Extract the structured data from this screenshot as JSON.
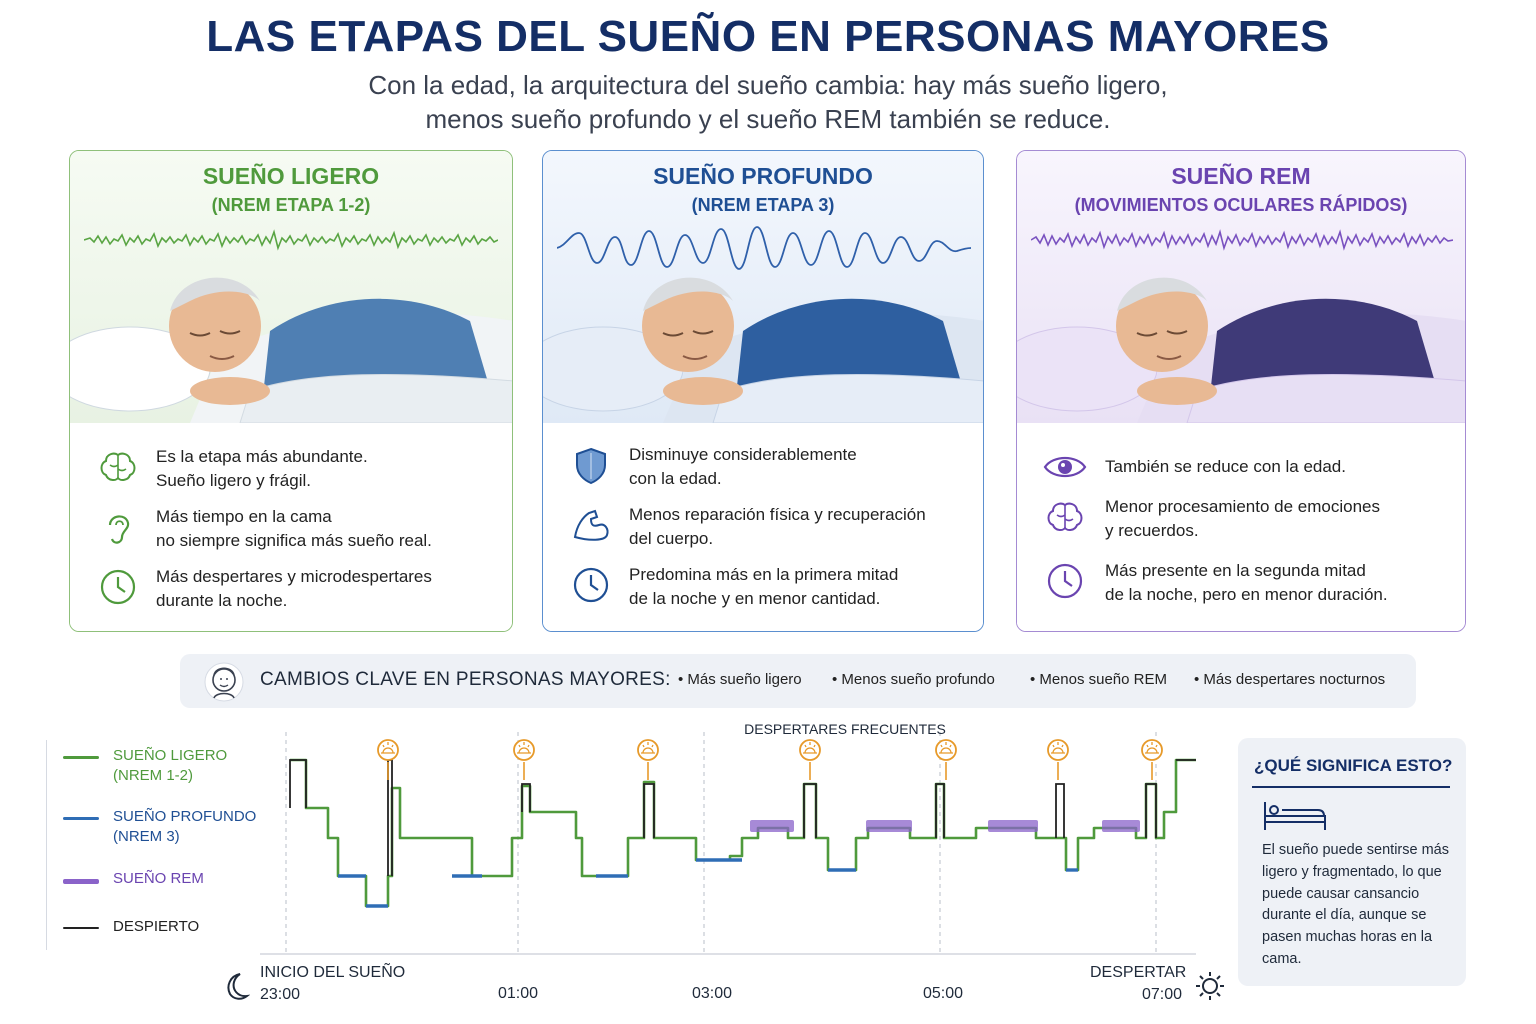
{
  "header": {
    "title": "LAS ETAPAS DEL SUEÑO EN PERSONAS MAYORES",
    "subtitle_line1": "Con la edad, la arquitectura del sueño cambia: hay más sueño ligero,",
    "subtitle_line2": "menos sueño profundo y el sueño REM también se reduce."
  },
  "cards": [
    {
      "title": "SUEÑO LIGERO",
      "subtitle": "(NREM ETAPA 1-2)",
      "color": "#4f9a3c",
      "bullets": [
        {
          "icon": "brain-icon",
          "line1": "Es la etapa más abundante.",
          "line2": "Sueño ligero y frágil."
        },
        {
          "icon": "ear-icon",
          "line1": "Más tiempo en la cama",
          "line2": "no siempre significa más sueño real."
        },
        {
          "icon": "clock-icon",
          "line1": "Más despertares y microdespertares",
          "line2": "durante la noche."
        }
      ]
    },
    {
      "title": "SUEÑO PROFUNDO",
      "subtitle": "(NREM ETAPA 3)",
      "color": "#1f4f94",
      "bullets": [
        {
          "icon": "shield-icon",
          "line1": "Disminuye considerablemente",
          "line2": "con la edad."
        },
        {
          "icon": "muscle-icon",
          "line1": "Menos reparación física y recuperación",
          "line2": "del cuerpo."
        },
        {
          "icon": "clock-icon",
          "line1": "Predomina más en la primera mitad",
          "line2": "de la noche y en menor cantidad."
        }
      ]
    },
    {
      "title": "SUEÑO REM",
      "subtitle": "(MOVIMIENTOS OCULARES RÁPIDOS)",
      "color": "#6a44b0",
      "bullets": [
        {
          "icon": "eye-icon",
          "line1": "También se reduce con la edad.",
          "line2": ""
        },
        {
          "icon": "brain-icon",
          "line1": "Menor procesamiento de emociones",
          "line2": "y recuerdos."
        },
        {
          "icon": "clock-icon",
          "line1": "Más presente en la segunda mitad",
          "line2": "de la noche, pero en menor duración."
        }
      ]
    }
  ],
  "key_changes": {
    "label": "CAMBIOS CLAVE EN PERSONAS MAYORES:",
    "items": [
      "• Más sueño ligero",
      "• Menos sueño profundo",
      "• Menos sueño REM",
      "• Más despertares nocturnos"
    ]
  },
  "legend": [
    {
      "line1": "SUEÑO LIGERO",
      "line2": "(NREM 1-2)",
      "color": "#4f9a3c"
    },
    {
      "line1": "SUEÑO PROFUNDO",
      "line2": "(NREM 3)",
      "color": "#2f6db5"
    },
    {
      "line1": "SUEÑO REM",
      "line2": "",
      "color": "#8a63c9"
    },
    {
      "line1": "DESPIERTO",
      "line2": "",
      "color": "#222222"
    }
  ],
  "hypnogram": {
    "annotation": "DESPERTARES FRECUENTES",
    "start_label": "INICIO DEL SUEÑO",
    "end_label": "DESPERTAR",
    "ticks": [
      "23:00",
      "01:00",
      "03:00",
      "05:00",
      "07:00"
    ],
    "wake_marker_icon": "sunrise-icon",
    "stages": [
      "Despierto",
      "REM",
      "Ligero",
      "Profundo"
    ]
  },
  "side_panel": {
    "title": "¿QUÉ SIGNIFICA ESTO?",
    "icon": "bed-icon",
    "body": "El sueño puede sentirse más ligero y fragmentado, lo que puede causar cansancio durante el día, aunque se pasen muchas horas en la cama."
  },
  "colors": {
    "navy": "#142e66",
    "light": "#4f9a3c",
    "deep": "#2f6db5",
    "rem": "#8a63c9",
    "wake": "#222222",
    "marker": "#e79a2a"
  }
}
